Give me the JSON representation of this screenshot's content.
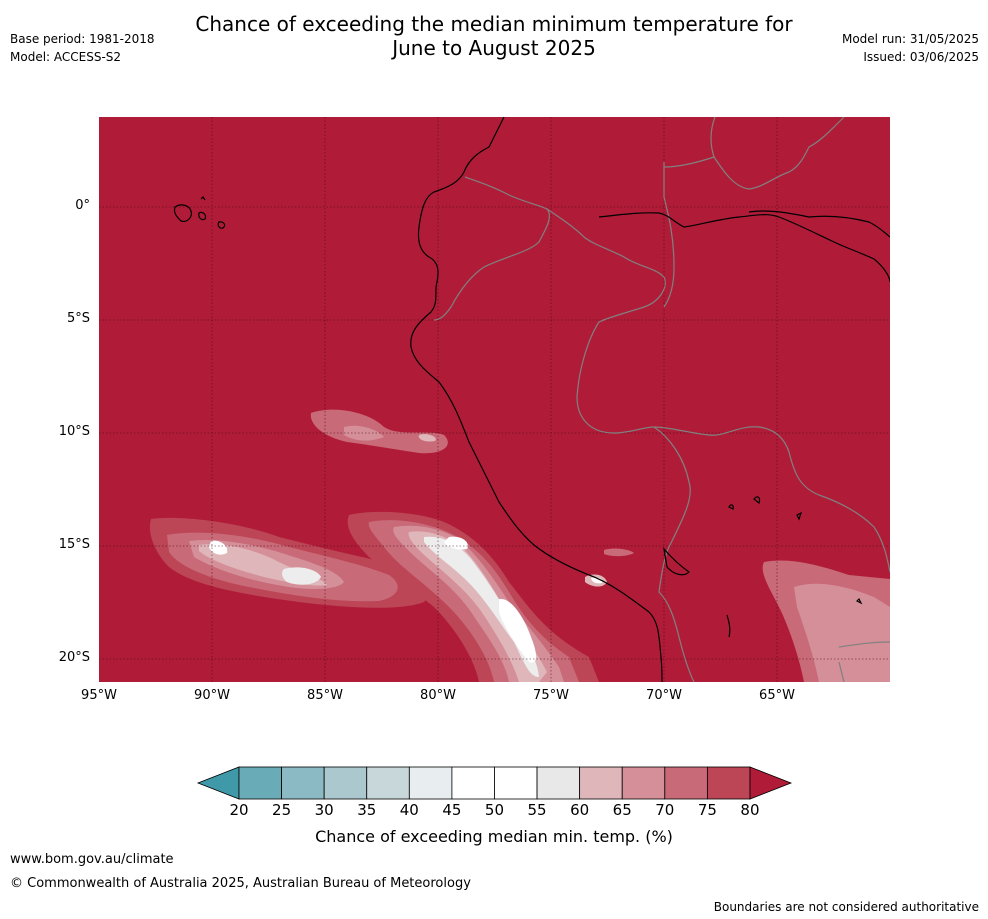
{
  "header": {
    "title_line1": "Chance of exceeding the median minimum temperature for",
    "title_line2": "June to August 2025",
    "base_period": "Base period: 1981-2018",
    "model": "Model: ACCESS-S2",
    "model_run": "Model run: 31/05/2025",
    "issued": "Issued: 03/06/2025"
  },
  "map": {
    "lat_labels": [
      "0°",
      "5°S",
      "10°S",
      "15°S",
      "20°S"
    ],
    "lon_labels": [
      "95°W",
      "90°W",
      "85°W",
      "80°W",
      "75°W",
      "70°W",
      "65°W"
    ],
    "background_color": "#b01c38",
    "coastline_color": "#000000",
    "border_color": "#808080"
  },
  "colorbar": {
    "ticks": [
      "20",
      "25",
      "30",
      "35",
      "40",
      "45",
      "50",
      "55",
      "60",
      "65",
      "70",
      "75",
      "80"
    ],
    "colors": [
      "#6aabb8",
      "#8bb9c4",
      "#aac8cd",
      "#c8d8da",
      "#e8eef0",
      "#ffffff",
      "#ffffff",
      "#e8e8e8",
      "#dfb7bb",
      "#d48f98",
      "#c86a78",
      "#bc4556"
    ],
    "low_extend_color": "#3f99a8",
    "high_extend_color": "#b01c38",
    "label": "Chance of exceeding median min. temp. (%)"
  },
  "footer": {
    "website": "www.bom.gov.au/climate",
    "copyright": "© Commonwealth of Australia 2025, Australian Bureau of Meteorology",
    "disclaimer": "Boundaries are not considered authoritative"
  }
}
